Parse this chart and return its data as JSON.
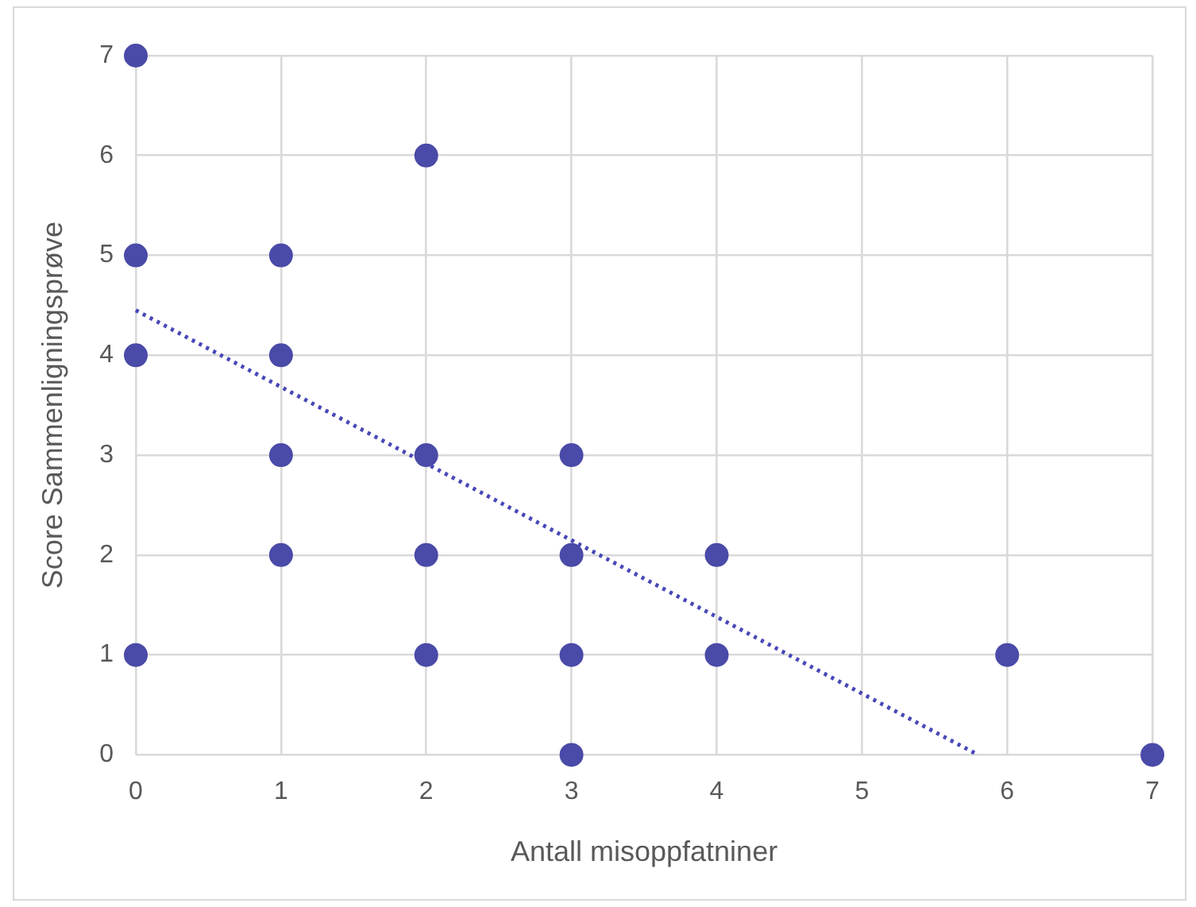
{
  "chart_data": {
    "type": "scatter",
    "xlabel": "Antall misoppfatniner",
    "ylabel": "Score Sammenligningsprøve",
    "xlim": [
      0,
      7
    ],
    "xticks": [
      0,
      1,
      2,
      3,
      4,
      5,
      6,
      7
    ],
    "ylim": [
      0,
      7
    ],
    "yticks": [
      0,
      1,
      2,
      3,
      4,
      5,
      6,
      7
    ],
    "grid": true,
    "legend": false,
    "marker": "circle",
    "series": [
      {
        "color": "#4a4aa8",
        "x": [
          0,
          0,
          0,
          0,
          1,
          1,
          1,
          1,
          2,
          2,
          2,
          2,
          3,
          3,
          3,
          3,
          4,
          4,
          6,
          7
        ],
        "values": [
          7,
          5,
          4,
          1,
          5,
          4,
          3,
          2,
          6,
          3,
          2,
          1,
          3,
          2,
          1,
          0,
          2,
          1,
          1,
          0
        ]
      },
      {
        "type": "line",
        "color": "#4848b8",
        "line_style": "dotted",
        "marker": "none",
        "x": [
          0,
          5.8
        ],
        "values": [
          4.45,
          0
        ]
      }
    ]
  }
}
